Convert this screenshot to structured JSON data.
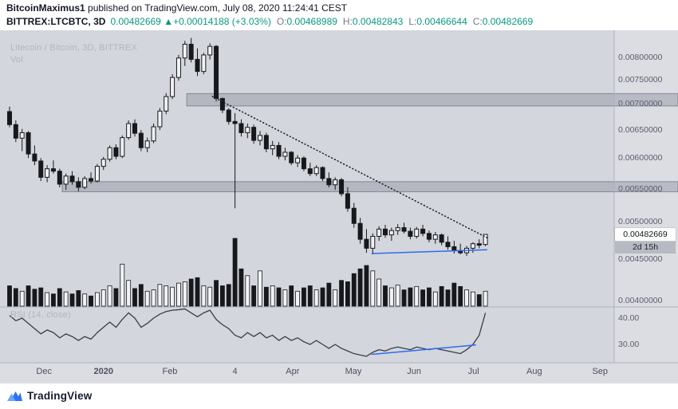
{
  "header": {
    "author": "BitcoinMaximus1",
    "published_text": " published on TradingView.com, July 08, 2020 11:24:41 CEST",
    "symbol": "BITTREX:LTCBTC, 3D",
    "last_price": "0.00482669",
    "change_text": "▲+0.00014188 (+3.03%)",
    "ohlc": {
      "o_label": "O:",
      "o": "0.00468989",
      "h_label": "H:",
      "h": "0.00482843",
      "l_label": "L:",
      "l": "0.00466644",
      "c_label": "C:",
      "c": "0.00482669"
    }
  },
  "watermark": {
    "title": "Litecoin / Bitcoin, 3D, BITTREX",
    "vol": "Vol"
  },
  "panels": {
    "rsi_label": "RSI (14, close)"
  },
  "price_scale": {
    "current_price": "0.00482669",
    "countdown": "2d 15h"
  },
  "footer": {
    "brand": "TradingView"
  },
  "colors": {
    "up": "#f2f3f6",
    "down": "#17181c",
    "wick": "#17181c",
    "accent_blue": "#2e6bf0",
    "teal": "#089981",
    "band_fill": "rgba(105,110,125,0.30)",
    "band_edge": "rgba(82,88,104,0.55)",
    "trendline": "#23252b",
    "rsi_line": "#3a3d45",
    "separator": "#aeb1bc",
    "axis_bg": "#dbdde3"
  },
  "chart_data": {
    "type": "candlestick",
    "title": "Litecoin / Bitcoin, 3D, BITTREX",
    "pair": "LTC/BTC",
    "exchange": "BITTREX",
    "interval": "3D",
    "price_scale_type": "log",
    "last_price": 0.00482669,
    "y_axis": {
      "ticks": [
        {
          "price": 0.008,
          "text": "0.00800000"
        },
        {
          "price": 0.0075,
          "text": "0.00750000"
        },
        {
          "price": 0.007,
          "text": "0.00700000"
        },
        {
          "price": 0.0065,
          "text": "0.00650000"
        },
        {
          "price": 0.006,
          "text": "0.00600000"
        },
        {
          "price": 0.0055,
          "text": "0.00550000"
        },
        {
          "price": 0.005,
          "text": "0.00500000"
        },
        {
          "price": 0.0045,
          "text": "0.00450000"
        },
        {
          "price": 0.004,
          "text": "0.00400000"
        }
      ]
    },
    "x_ticks": [
      {
        "i": 5.5,
        "label": "Dec"
      },
      {
        "i": 15.0,
        "label": "2020",
        "major": true
      },
      {
        "i": 25.6,
        "label": "Feb"
      },
      {
        "i": 36.0,
        "label": "4"
      },
      {
        "i": 45.2,
        "label": "Apr"
      },
      {
        "i": 54.9,
        "label": "May"
      },
      {
        "i": 64.6,
        "label": "Jun"
      },
      {
        "i": 74.1,
        "label": "Jul"
      },
      {
        "i": 83.8,
        "label": "Aug"
      },
      {
        "i": 94.3,
        "label": "Sep"
      }
    ],
    "candles": {
      "ohlc": [
        [
          0.00685,
          0.00695,
          0.00655,
          0.0066
        ],
        [
          0.0066,
          0.00668,
          0.00628,
          0.00635
        ],
        [
          0.00635,
          0.00652,
          0.00612,
          0.00645
        ],
        [
          0.00645,
          0.00648,
          0.006,
          0.00607
        ],
        [
          0.00607,
          0.00622,
          0.00588,
          0.00595
        ],
        [
          0.00595,
          0.006,
          0.00562,
          0.00568
        ],
        [
          0.00568,
          0.00588,
          0.0056,
          0.00582
        ],
        [
          0.00582,
          0.00596,
          0.00574,
          0.00578
        ],
        [
          0.00578,
          0.00582,
          0.00552,
          0.00557
        ],
        [
          0.00557,
          0.00574,
          0.00548,
          0.0057
        ],
        [
          0.0057,
          0.00578,
          0.00556,
          0.00561
        ],
        [
          0.00561,
          0.00568,
          0.00546,
          0.00552
        ],
        [
          0.00552,
          0.0057,
          0.00549,
          0.00566
        ],
        [
          0.00566,
          0.00576,
          0.00558,
          0.00562
        ],
        [
          0.00562,
          0.0059,
          0.0056,
          0.00586
        ],
        [
          0.00586,
          0.00602,
          0.0058,
          0.00598
        ],
        [
          0.00598,
          0.00622,
          0.00594,
          0.00618
        ],
        [
          0.00618,
          0.00624,
          0.00598,
          0.00603
        ],
        [
          0.00603,
          0.0064,
          0.006,
          0.00636
        ],
        [
          0.00636,
          0.00668,
          0.00632,
          0.00662
        ],
        [
          0.00662,
          0.0067,
          0.00638,
          0.00644
        ],
        [
          0.00644,
          0.0065,
          0.00612,
          0.00618
        ],
        [
          0.00618,
          0.00636,
          0.0061,
          0.0063
        ],
        [
          0.0063,
          0.00662,
          0.00626,
          0.00656
        ],
        [
          0.00656,
          0.00692,
          0.0065,
          0.00686
        ],
        [
          0.00686,
          0.00722,
          0.0068,
          0.00715
        ],
        [
          0.00715,
          0.00762,
          0.0071,
          0.00755
        ],
        [
          0.00755,
          0.00805,
          0.00748,
          0.00798
        ],
        [
          0.00798,
          0.00838,
          0.0078,
          0.0083
        ],
        [
          0.0083,
          0.00845,
          0.00788,
          0.00795
        ],
        [
          0.00795,
          0.0082,
          0.00758,
          0.00768
        ],
        [
          0.00768,
          0.0081,
          0.00762,
          0.00805
        ],
        [
          0.00805,
          0.00832,
          0.00795,
          0.00825
        ],
        [
          0.00825,
          0.00828,
          0.00705,
          0.00711
        ],
        [
          0.00711,
          0.00713,
          0.00682,
          0.00688
        ],
        [
          0.00688,
          0.00692,
          0.0066,
          0.00666
        ],
        [
          0.00666,
          0.00682,
          0.0052,
          0.00662
        ],
        [
          0.00662,
          0.0067,
          0.00638,
          0.00645
        ],
        [
          0.00645,
          0.00662,
          0.00635,
          0.00655
        ],
        [
          0.00655,
          0.0066,
          0.00625,
          0.00631
        ],
        [
          0.00631,
          0.00648,
          0.00622,
          0.0064
        ],
        [
          0.0064,
          0.00645,
          0.0061,
          0.00616
        ],
        [
          0.00616,
          0.0063,
          0.00605,
          0.00622
        ],
        [
          0.00622,
          0.00628,
          0.00598,
          0.00603
        ],
        [
          0.00603,
          0.00618,
          0.00596,
          0.0061
        ],
        [
          0.0061,
          0.00612,
          0.00588,
          0.00592
        ],
        [
          0.00592,
          0.00605,
          0.00585,
          0.006
        ],
        [
          0.006,
          0.00603,
          0.00578,
          0.00582
        ],
        [
          0.00582,
          0.00592,
          0.0057,
          0.00574
        ],
        [
          0.00574,
          0.00588,
          0.0057,
          0.00584
        ],
        [
          0.00584,
          0.00586,
          0.00562,
          0.00566
        ],
        [
          0.00566,
          0.00576,
          0.00552,
          0.00556
        ],
        [
          0.00556,
          0.00568,
          0.00548,
          0.00564
        ],
        [
          0.00564,
          0.00567,
          0.00538,
          0.00542
        ],
        [
          0.00542,
          0.00552,
          0.00515,
          0.0052
        ],
        [
          0.0052,
          0.00528,
          0.00492,
          0.00498
        ],
        [
          0.00498,
          0.00506,
          0.0047,
          0.00476
        ],
        [
          0.00476,
          0.0049,
          0.00458,
          0.00464
        ],
        [
          0.00464,
          0.00484,
          0.00456,
          0.0048
        ],
        [
          0.0048,
          0.00494,
          0.00474,
          0.0049
        ],
        [
          0.0049,
          0.00496,
          0.00478,
          0.00482
        ],
        [
          0.00482,
          0.00492,
          0.00474,
          0.00488
        ],
        [
          0.00488,
          0.00497,
          0.00482,
          0.00492
        ],
        [
          0.00492,
          0.00499,
          0.00484,
          0.00487
        ],
        [
          0.00487,
          0.00492,
          0.00476,
          0.0048
        ],
        [
          0.0048,
          0.00493,
          0.00477,
          0.0049
        ],
        [
          0.0049,
          0.00496,
          0.0048,
          0.00484
        ],
        [
          0.00484,
          0.00488,
          0.00472,
          0.00476
        ],
        [
          0.00476,
          0.00486,
          0.0047,
          0.00482
        ],
        [
          0.00482,
          0.00484,
          0.00468,
          0.00472
        ],
        [
          0.00472,
          0.0048,
          0.00462,
          0.00466
        ],
        [
          0.00466,
          0.00474,
          0.00457,
          0.00461
        ],
        [
          0.00461,
          0.0047,
          0.00456,
          0.00458
        ],
        [
          0.00458,
          0.00467,
          0.00454,
          0.00464
        ],
        [
          0.00464,
          0.00472,
          0.00458,
          0.0047
        ],
        [
          0.0047,
          0.00476,
          0.00464,
          0.00468
        ],
        [
          0.00468989,
          0.00482843,
          0.00466644,
          0.00482669
        ]
      ],
      "volume": [
        0.3,
        0.26,
        0.22,
        0.3,
        0.25,
        0.27,
        0.2,
        0.18,
        0.26,
        0.21,
        0.18,
        0.23,
        0.18,
        0.15,
        0.2,
        0.24,
        0.3,
        0.26,
        0.62,
        0.38,
        0.26,
        0.32,
        0.22,
        0.24,
        0.32,
        0.3,
        0.28,
        0.34,
        0.36,
        0.4,
        0.42,
        0.3,
        0.28,
        0.38,
        0.3,
        0.32,
        1.0,
        0.55,
        0.45,
        0.3,
        0.52,
        0.28,
        0.3,
        0.27,
        0.24,
        0.3,
        0.22,
        0.27,
        0.3,
        0.24,
        0.27,
        0.34,
        0.24,
        0.38,
        0.36,
        0.48,
        0.55,
        0.6,
        0.52,
        0.4,
        0.3,
        0.27,
        0.31,
        0.24,
        0.27,
        0.29,
        0.24,
        0.27,
        0.21,
        0.29,
        0.24,
        0.34,
        0.29,
        0.24,
        0.21,
        0.17,
        0.22
      ]
    },
    "rsi": {
      "values": [
        41,
        39,
        40,
        38,
        36,
        34,
        35.5,
        34.5,
        32.5,
        34,
        33,
        31.5,
        33,
        32,
        34.5,
        36.5,
        38.5,
        36.5,
        39.5,
        42,
        40,
        36.5,
        38,
        40,
        41.5,
        42.5,
        43,
        43.2,
        43.5,
        42,
        40.5,
        42,
        43,
        39.5,
        37.5,
        36,
        33.5,
        32.5,
        34.5,
        33,
        34.5,
        32.5,
        33.5,
        31.5,
        33,
        31.5,
        32.5,
        31,
        30,
        31.5,
        30,
        28.5,
        30,
        28.5,
        27.5,
        26.5,
        26,
        25.5,
        27,
        28,
        27.5,
        28.5,
        29,
        28.5,
        28,
        29,
        28.5,
        28,
        28.5,
        28,
        27.5,
        27,
        26.5,
        28,
        30,
        33.5,
        42
      ],
      "axis_ticks": [
        {
          "value": 40,
          "text": "40.00"
        },
        {
          "value": 30,
          "text": "30.00"
        }
      ]
    },
    "overlays": {
      "resistance_zones": [
        {
          "from_index": 28.3,
          "price_top": 0.00721,
          "price_bottom": 0.00696
        },
        {
          "from_index": 8.4,
          "price_top": 0.00561,
          "price_bottom": 0.00545
        }
      ],
      "descending_trendline": {
        "style": "dotted",
        "points": [
          [
            32.4,
            0.00715
          ],
          [
            76.5,
            0.00477
          ]
        ]
      },
      "support_line": {
        "style": "solid",
        "points": [
          [
            57.8,
            0.00457
          ],
          [
            76.3,
            0.00462
          ]
        ]
      },
      "rsi_support_line": {
        "style": "solid",
        "points": [
          [
            57.8,
            26.2
          ],
          [
            74.5,
            29.8
          ]
        ]
      }
    }
  }
}
